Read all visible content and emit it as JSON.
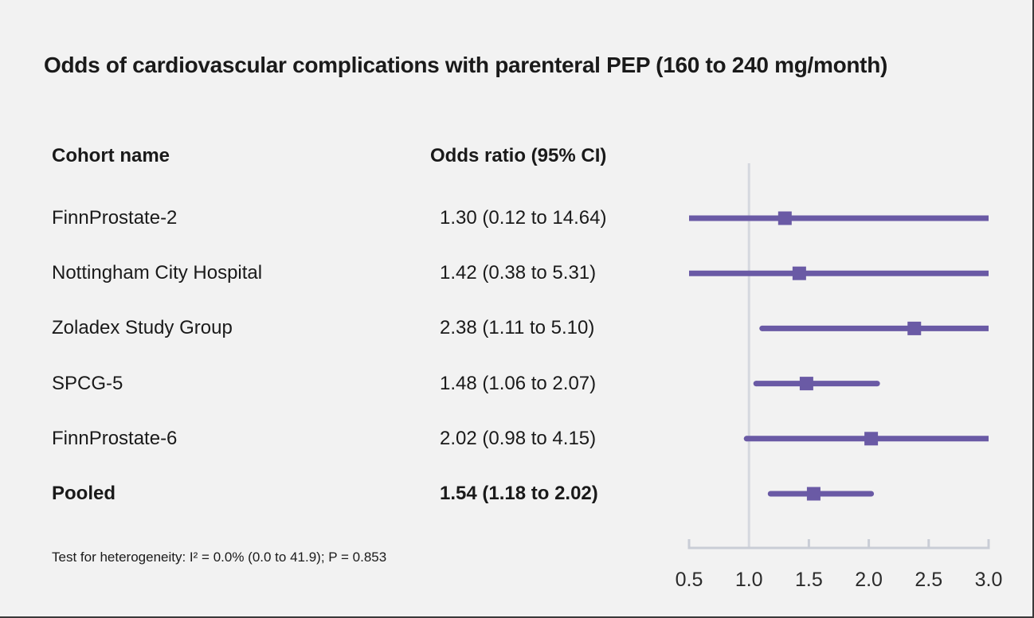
{
  "title": "Odds of cardiovascular complications with parenteral PEP (160 to 240 mg/month)",
  "table": {
    "col1_header": "Cohort name",
    "col2_header": "Odds ratio (95% CI)"
  },
  "footnote": "Test for heterogeneity: I² = 0.0% (0.0 to 41.9); P = 0.853",
  "colors": {
    "background": "#f2f2f2",
    "marker": "#6a5aa5",
    "reference_line": "#d5d8df",
    "axis": "#c9cdd6",
    "text": "#1a1a1a",
    "tick_label": "#2b2b2b"
  },
  "chart_data": {
    "type": "forest",
    "title": "Odds of cardiovascular complications with parenteral PEP (160 to 240 mg/month)",
    "xlabel": "Odds ratio",
    "xlim": [
      0.5,
      3.0
    ],
    "ticks": [
      0.5,
      1.0,
      1.5,
      2.0,
      2.5,
      3.0
    ],
    "tick_labels": [
      "0.5",
      "1.0",
      "1.5",
      "2.0",
      "2.5",
      "3.0"
    ],
    "reference_value": 1.0,
    "legend": "none",
    "grid": false,
    "rows": [
      {
        "label": "FinnProstate-2",
        "or": 1.3,
        "ci_low": 0.12,
        "ci_high": 14.64,
        "or_text": "1.30 (0.12 to 14.64)",
        "pooled": false
      },
      {
        "label": "Nottingham City Hospital",
        "or": 1.42,
        "ci_low": 0.38,
        "ci_high": 5.31,
        "or_text": "1.42 (0.38 to 5.31)",
        "pooled": false
      },
      {
        "label": "Zoladex Study Group",
        "or": 2.38,
        "ci_low": 1.11,
        "ci_high": 5.1,
        "or_text": "2.38 (1.11 to 5.10)",
        "pooled": false
      },
      {
        "label": "SPCG-5",
        "or": 1.48,
        "ci_low": 1.06,
        "ci_high": 2.07,
        "or_text": "1.48 (1.06 to 2.07)",
        "pooled": false
      },
      {
        "label": "FinnProstate-6",
        "or": 2.02,
        "ci_low": 0.98,
        "ci_high": 4.15,
        "or_text": "2.02 (0.98 to 4.15)",
        "pooled": false
      },
      {
        "label": "Pooled",
        "or": 1.54,
        "ci_low": 1.18,
        "ci_high": 2.02,
        "or_text": "1.54 (1.18 to 2.02)",
        "pooled": true
      }
    ],
    "heterogeneity_note": "Test for heterogeneity: I² = 0.0% (0.0 to 41.9); P = 0.853"
  }
}
